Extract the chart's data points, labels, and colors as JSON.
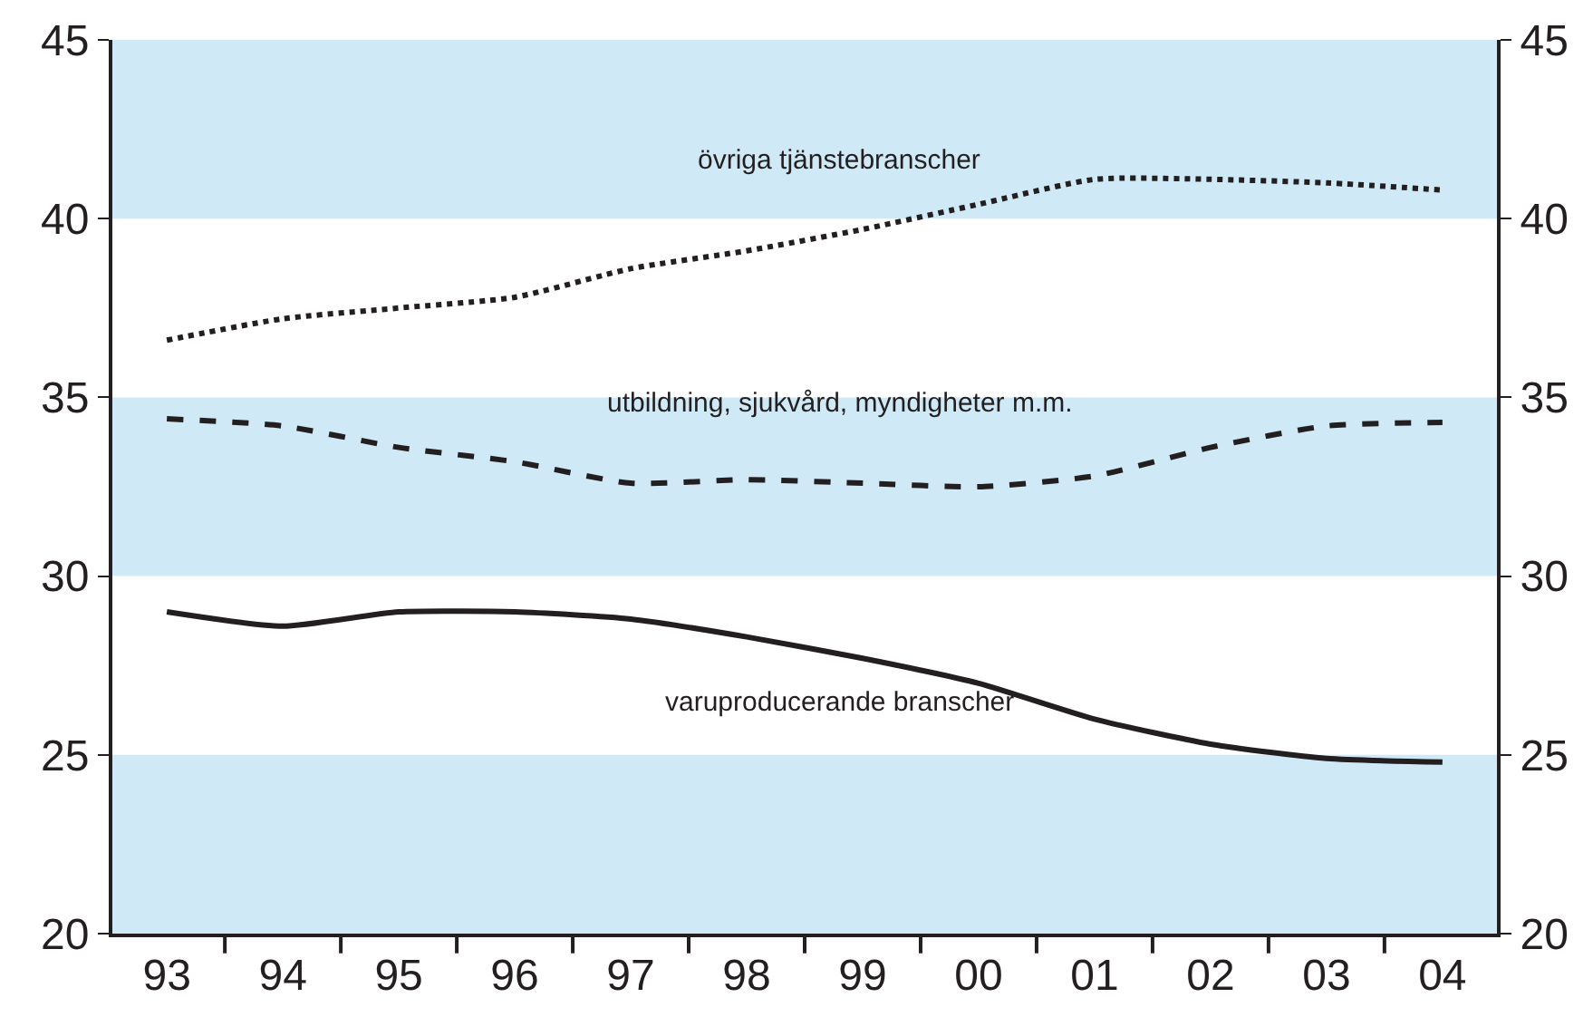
{
  "chart_data": {
    "type": "line",
    "categories": [
      "93",
      "94",
      "95",
      "96",
      "97",
      "98",
      "99",
      "00",
      "01",
      "02",
      "03",
      "04"
    ],
    "series": [
      {
        "name": "övriga tjänstebranscher",
        "color": "#231f20",
        "line_style": "dotted",
        "values": [
          36.6,
          37.2,
          37.5,
          37.8,
          38.6,
          39.1,
          39.7,
          40.4,
          41.1,
          41.1,
          41.0,
          40.8
        ]
      },
      {
        "name": "utbildning, sjukvård, myndigheter m.m.",
        "color": "#231f20",
        "line_style": "dashed",
        "values": [
          34.4,
          34.2,
          33.6,
          33.2,
          32.6,
          32.7,
          32.6,
          32.5,
          32.8,
          33.6,
          34.2,
          34.3
        ]
      },
      {
        "name": "varuproducerande branscher",
        "color": "#231f20",
        "line_style": "solid",
        "values": [
          29.0,
          28.6,
          29.0,
          29.0,
          28.8,
          28.3,
          27.7,
          27.0,
          26.0,
          25.3,
          24.9,
          24.8
        ]
      }
    ],
    "ylim": [
      20,
      45
    ],
    "yticks": [
      20,
      25,
      30,
      35,
      40,
      45
    ],
    "y2lim": [
      20,
      45
    ],
    "y2ticks": [
      20,
      25,
      30,
      35,
      40,
      45
    ],
    "bands": [
      {
        "axis": "y",
        "from": 20,
        "to": 25,
        "color": "#cfe9f6"
      },
      {
        "axis": "y",
        "from": 30,
        "to": 35,
        "color": "#cfe9f6"
      },
      {
        "axis": "y",
        "from": 40,
        "to": 45,
        "color": "#cfe9f6"
      }
    ],
    "grid": false,
    "legend": false,
    "marker": "none"
  }
}
